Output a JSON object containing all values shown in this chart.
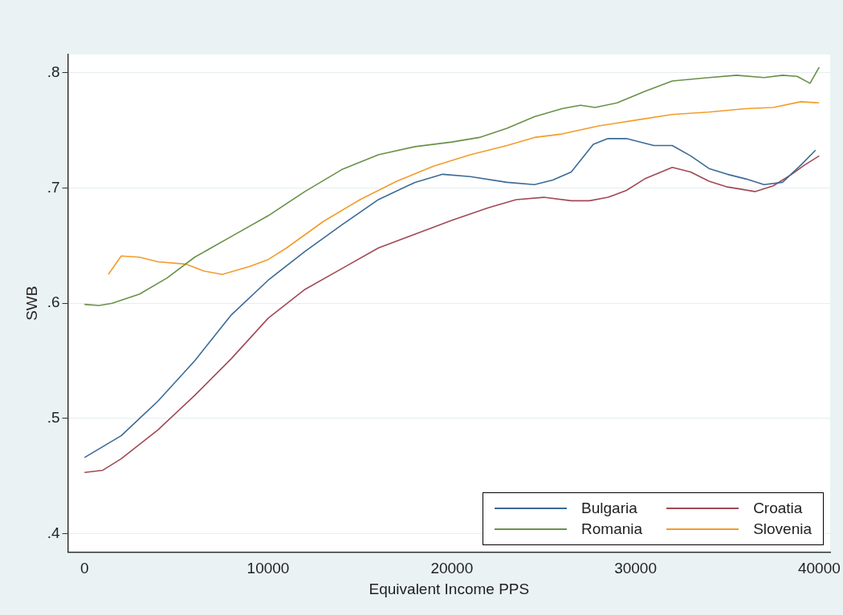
{
  "chart_data": {
    "type": "line",
    "xlabel": "Equivalent Income PPS",
    "ylabel": "SWB",
    "xlim": [
      -900,
      40600
    ],
    "xticks": [
      0,
      10000,
      20000,
      30000,
      40000
    ],
    "ylim": [
      0.384,
      0.816
    ],
    "yticks": [
      {
        "value": 0.4,
        "label": ".4"
      },
      {
        "value": 0.5,
        "label": ".5"
      },
      {
        "value": 0.6,
        "label": ".6"
      },
      {
        "value": 0.7,
        "label": ".7"
      },
      {
        "value": 0.8,
        "label": ".8"
      }
    ],
    "grid": "y",
    "legend": "bottom right",
    "marker": "none",
    "line_style": "solid",
    "series": [
      {
        "name": "Bulgaria",
        "color": "#3b6a96",
        "x": [
          0,
          2000,
          4000,
          6000,
          8000,
          10000,
          12000,
          14000,
          16000,
          18000,
          19500,
          21000,
          23000,
          24500,
          25500,
          26500,
          27700,
          28500,
          29500,
          31000,
          32000,
          33000,
          34000,
          35000,
          36000,
          37000,
          38000,
          39000,
          39800
        ],
        "values": [
          0.466,
          0.485,
          0.515,
          0.55,
          0.59,
          0.62,
          0.645,
          0.668,
          0.69,
          0.705,
          0.712,
          0.71,
          0.705,
          0.703,
          0.707,
          0.714,
          0.738,
          0.743,
          0.743,
          0.737,
          0.737,
          0.728,
          0.717,
          0.712,
          0.708,
          0.703,
          0.705,
          0.72,
          0.733
        ]
      },
      {
        "name": "Croatia",
        "color": "#a04a55",
        "x": [
          0,
          1000,
          2000,
          4000,
          6000,
          8000,
          10000,
          12000,
          14000,
          16000,
          18000,
          20000,
          22000,
          23500,
          25000,
          26500,
          27500,
          28500,
          29500,
          30500,
          32000,
          33000,
          34000,
          35000,
          36500,
          37500,
          38500,
          39200,
          40000
        ],
        "values": [
          0.453,
          0.455,
          0.465,
          0.49,
          0.52,
          0.552,
          0.587,
          0.612,
          0.63,
          0.648,
          0.66,
          0.672,
          0.683,
          0.69,
          0.692,
          0.689,
          0.689,
          0.692,
          0.698,
          0.708,
          0.718,
          0.714,
          0.706,
          0.701,
          0.697,
          0.702,
          0.712,
          0.72,
          0.728
        ]
      },
      {
        "name": "Romania",
        "color": "#6a9048",
        "x": [
          0,
          800,
          1500,
          3000,
          4500,
          6000,
          8000,
          10000,
          12000,
          14000,
          16000,
          18000,
          20000,
          21500,
          23000,
          24500,
          26000,
          27000,
          27800,
          29000,
          30500,
          32000,
          34000,
          35500,
          37000,
          38000,
          38800,
          39500,
          40000
        ],
        "values": [
          0.599,
          0.598,
          0.6,
          0.608,
          0.622,
          0.64,
          0.658,
          0.676,
          0.697,
          0.716,
          0.729,
          0.736,
          0.74,
          0.744,
          0.752,
          0.762,
          0.769,
          0.772,
          0.77,
          0.774,
          0.784,
          0.793,
          0.796,
          0.798,
          0.796,
          0.798,
          0.797,
          0.791,
          0.805
        ]
      },
      {
        "name": "Slovenia",
        "color": "#f39c2a",
        "x": [
          1300,
          2000,
          3000,
          4000,
          5500,
          6500,
          7500,
          9000,
          10000,
          11000,
          13000,
          15000,
          17000,
          19000,
          21000,
          23000,
          24500,
          26000,
          28000,
          30000,
          32000,
          34000,
          36000,
          37500,
          39000,
          40000
        ],
        "values": [
          0.625,
          0.641,
          0.64,
          0.636,
          0.634,
          0.628,
          0.625,
          0.632,
          0.638,
          0.648,
          0.671,
          0.69,
          0.706,
          0.719,
          0.729,
          0.737,
          0.744,
          0.747,
          0.754,
          0.759,
          0.764,
          0.766,
          0.769,
          0.77,
          0.775,
          0.774
        ]
      }
    ]
  }
}
